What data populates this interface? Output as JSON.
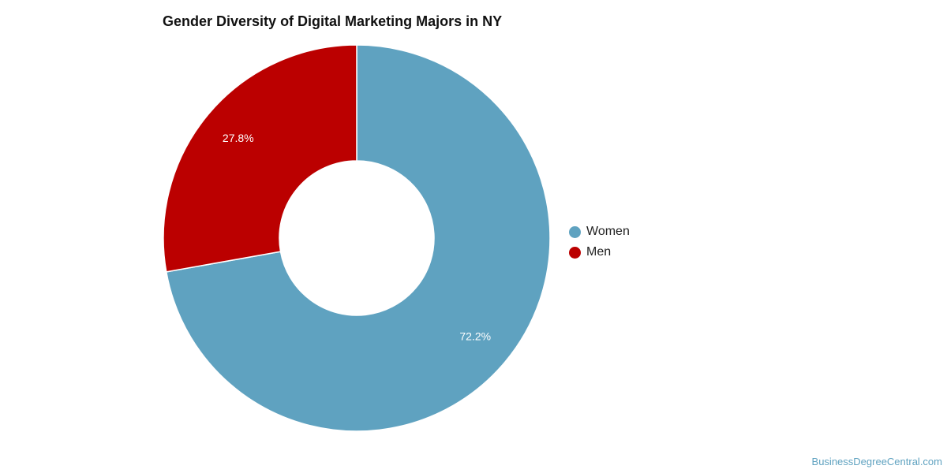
{
  "chart_data": {
    "type": "pie",
    "title": "Gender Diversity of Digital Marketing Majors in NY",
    "categories": [
      "Women",
      "Men"
    ],
    "values": [
      72.2,
      27.8
    ],
    "labels": [
      "72.2%",
      "27.8%"
    ],
    "colors": [
      "#5fa2c0",
      "#bb0000"
    ],
    "donut": true,
    "legend_position": "right"
  },
  "footer": {
    "source": "BusinessDegreeCentral.com"
  }
}
